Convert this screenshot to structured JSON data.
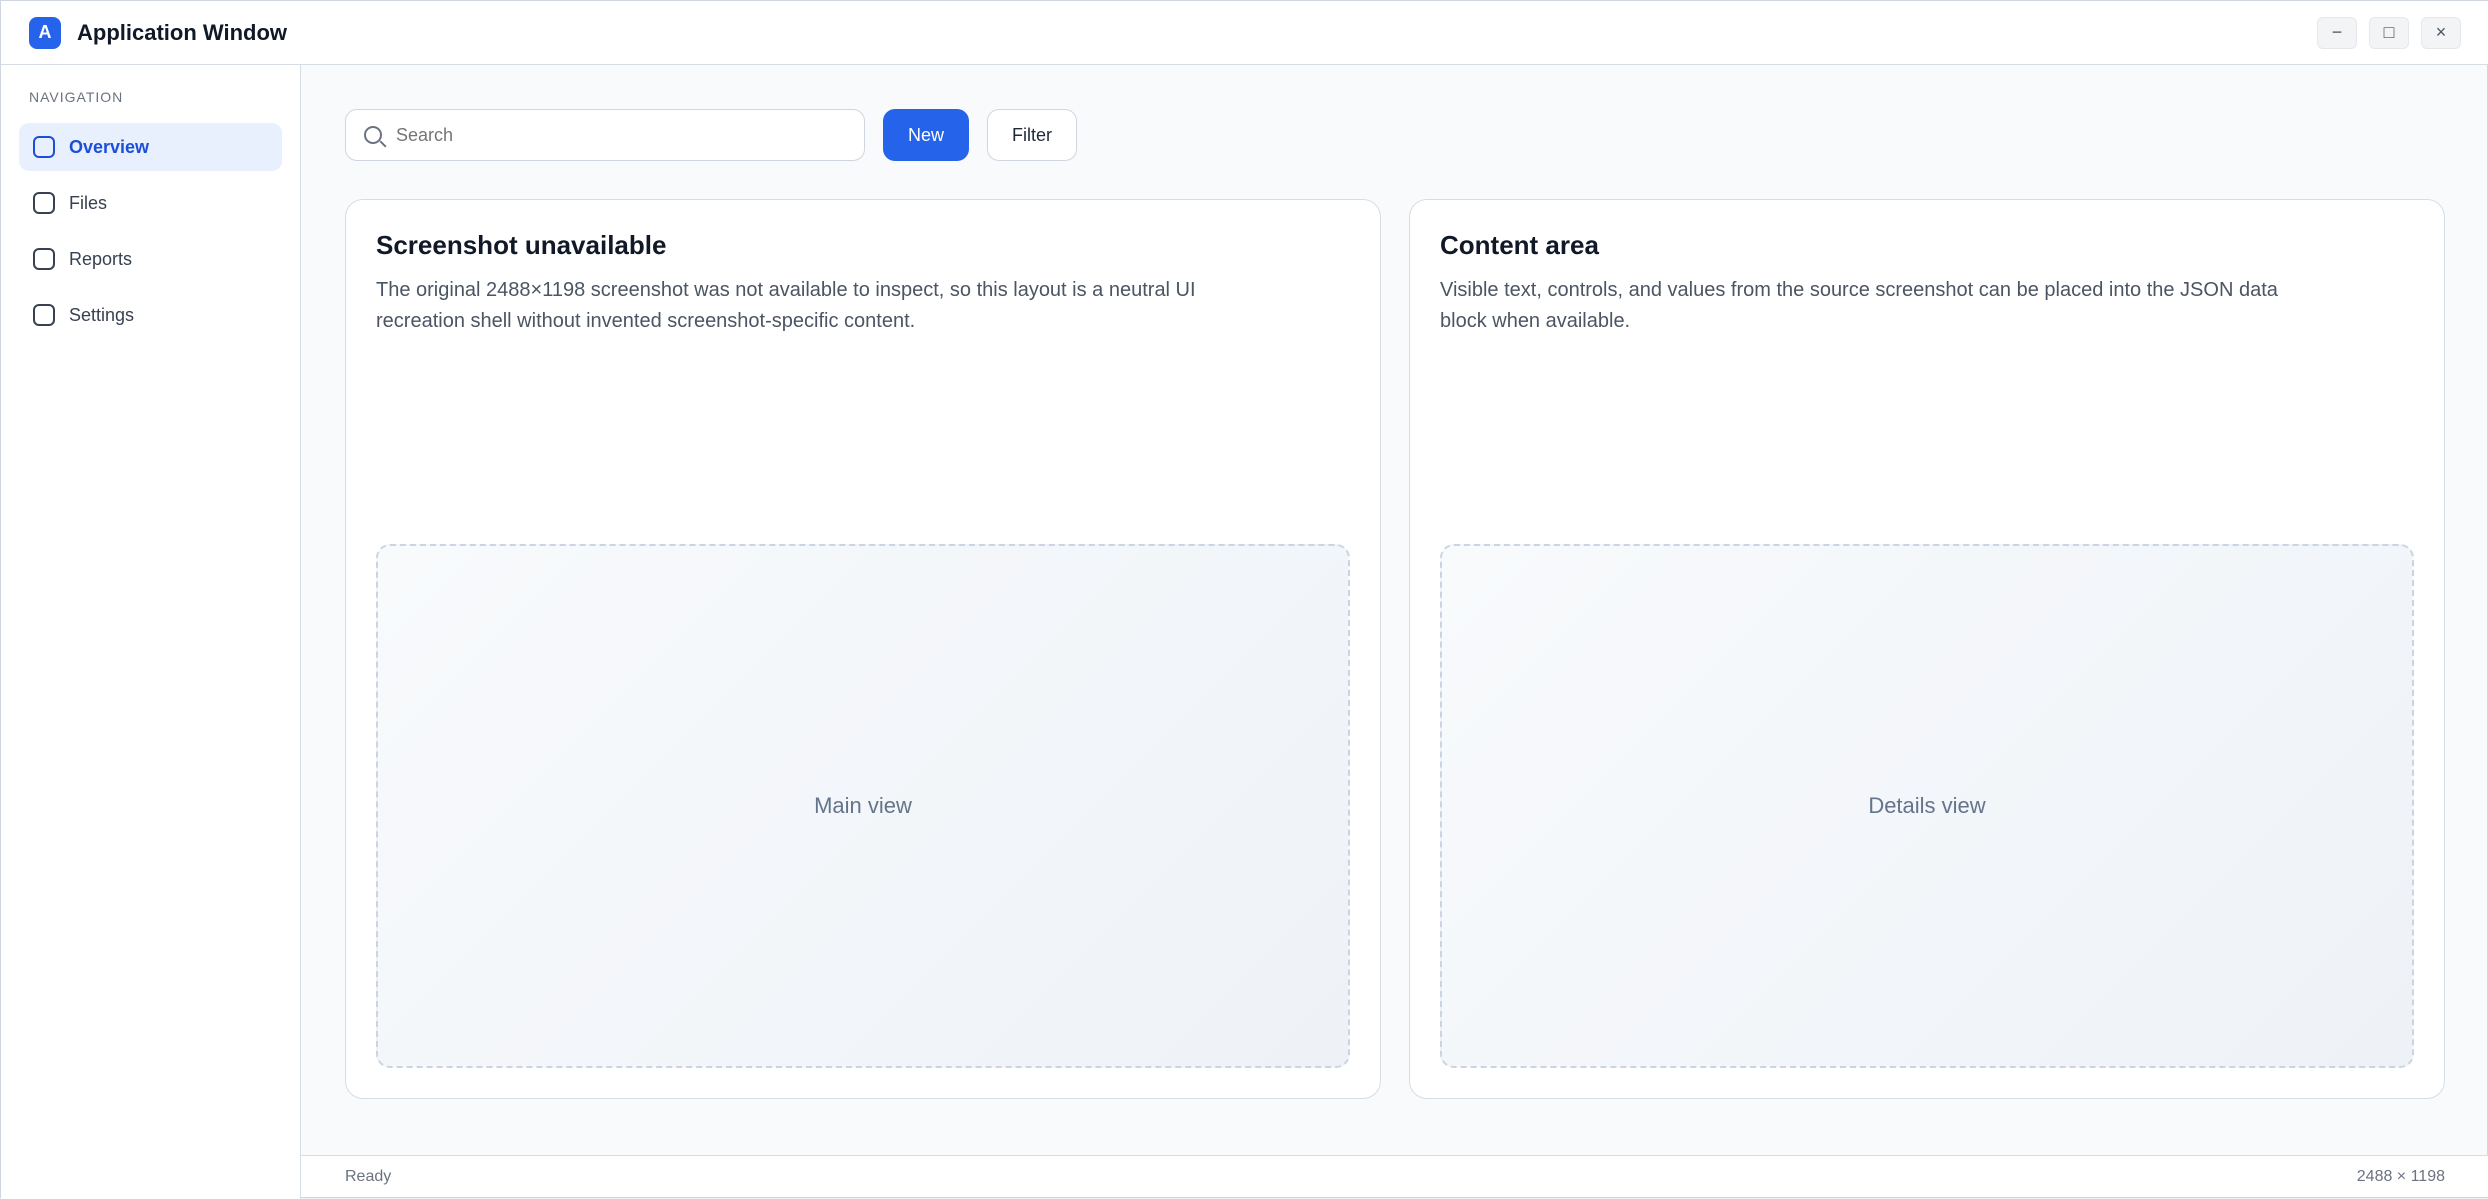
{
  "window": {
    "title": "Application Window",
    "icon_label": "A",
    "accent": "#2563eb"
  },
  "controls": {
    "minimize": "−",
    "maximize": "□",
    "close": "×"
  },
  "sidebar": {
    "title": "Navigation",
    "items": [
      {
        "label": "Overview",
        "icon": "home-icon"
      },
      {
        "label": "Files",
        "icon": "folder-icon"
      },
      {
        "label": "Reports",
        "icon": "chart-icon"
      },
      {
        "label": "Settings",
        "icon": "gear-icon"
      }
    ]
  },
  "toolbar": {
    "search_placeholder": "Search",
    "primary_label": "New",
    "secondary_label": "Filter"
  },
  "panels": [
    {
      "title": "Screenshot unavailable",
      "text": "The original 2488×1198 screenshot was not available to inspect, so this layout is a neutral UI recreation shell without invented screenshot-specific content."
    },
    {
      "title": "Content area",
      "text": "Visible text, controls, and values from the source screenshot can be placed into the JSON data block when available."
    }
  ],
  "placeholder": {
    "left": "Main view",
    "right": "Details view"
  },
  "status": {
    "left": "Ready",
    "right": "2488 × 1198"
  }
}
